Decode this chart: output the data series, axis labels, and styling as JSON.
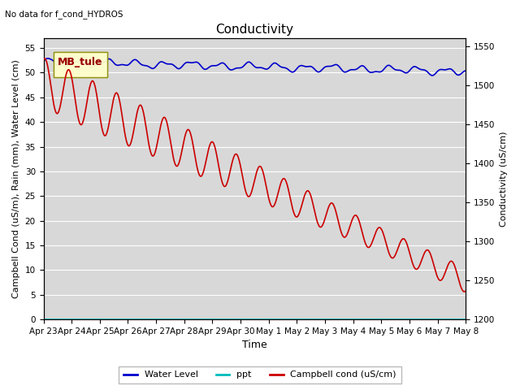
{
  "title": "Conductivity",
  "top_left_text": "No data for f_cond_HYDROS",
  "xlabel": "Time",
  "ylabel_left": "Campbell Cond (uS/m), Rain (mm), Water Level (cm)",
  "ylabel_right": "Conductivity (uS/cm)",
  "legend_label": "MB_tule",
  "ylim_left": [
    0,
    57
  ],
  "ylim_right": [
    1200,
    1560
  ],
  "water_level_color": "#0000cc",
  "ppt_color": "#00bbbb",
  "campbell_color": "#cc0000",
  "x_tick_labels": [
    "Apr 23",
    "Apr 24",
    "Apr 25",
    "Apr 26",
    "Apr 27",
    "Apr 28",
    "Apr 29",
    "Apr 30",
    "May 1",
    "May 2",
    "May 3",
    "May 4",
    "May 5",
    "May 6",
    "May 7",
    "May 8"
  ],
  "bg_color": "#d8d8d8",
  "grid_color": "#ffffff",
  "title_fontsize": 11,
  "axis_fontsize": 8,
  "tick_fontsize": 7.5
}
